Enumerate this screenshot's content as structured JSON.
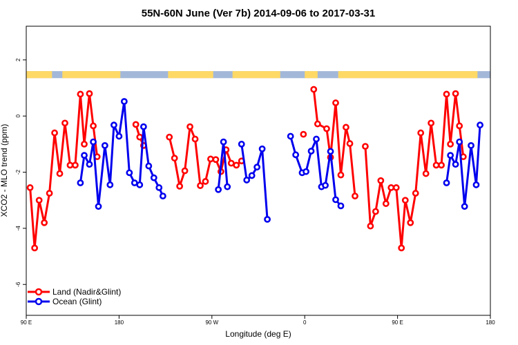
{
  "chart_data": {
    "type": "line",
    "title": "55N-60N June (Ver 7b)   2014-09-06 to 2017-03-31",
    "xlabel": "Longitude (deg E)",
    "ylabel": "XCO2 - MLO trend (ppm)",
    "xlim": [
      90,
      450
    ],
    "ylim": [
      -7.1,
      3.2
    ],
    "x_ticks": [
      90,
      162,
      234,
      306,
      378,
      450
    ],
    "x_tick_labels": [
      "90 E",
      "180",
      "90 W",
      "0",
      "90 E",
      "180"
    ],
    "y_ticks": [
      -6,
      -4,
      -2,
      0,
      2
    ],
    "y_tick_labels": [
      "-6",
      "-4",
      "-2",
      "0",
      "2"
    ],
    "legend_position": "bottom-left",
    "land_strip": {
      "y_range": [
        1.35,
        1.6
      ],
      "land_color": "#ffd966",
      "ocean_color": "#a3b8d9"
    },
    "series": [
      {
        "name": "Land (Nadir&Glint)",
        "color": "#ff0000",
        "segments": [
          [
            [
              93,
              -2.55
            ],
            [
              96.5,
              -4.7
            ],
            [
              100,
              -3
            ],
            [
              104,
              -3.8
            ],
            [
              108,
              -2.75
            ],
            [
              112,
              -0.6
            ],
            [
              116,
              -2.05
            ],
            [
              120,
              -0.25
            ],
            [
              124,
              -1.75
            ],
            [
              128,
              -1.75
            ],
            [
              132,
              0.78
            ],
            [
              135,
              -1
            ],
            [
              139,
              0.8
            ],
            [
              142,
              -0.35
            ],
            [
              145,
              -1.45
            ]
          ],
          [
            [
              175,
              -0.3
            ],
            [
              178,
              -0.75
            ],
            [
              181,
              -1.05
            ]
          ],
          [
            [
              201,
              -0.75
            ],
            [
              205,
              -1.5
            ],
            [
              209,
              -2.5
            ],
            [
              213,
              -1.95
            ],
            [
              217,
              -0.38
            ],
            [
              221,
              -0.82
            ],
            [
              225,
              -2.48
            ],
            [
              229,
              -2.33
            ],
            [
              233,
              -1.53
            ],
            [
              237,
              -1.55
            ],
            [
              241,
              -1.98
            ],
            [
              245,
              -1.2
            ],
            [
              249,
              -1.68
            ],
            [
              253,
              -1.75
            ],
            [
              257,
              -1.6
            ]
          ],
          [
            [
              305,
              -0.65
            ]
          ],
          [
            [
              313,
              0.95
            ],
            [
              316,
              -0.28
            ],
            [
              323,
              -0.45
            ],
            [
              326,
              -1.47
            ],
            [
              330,
              0.47
            ],
            [
              334,
              -2.1
            ],
            [
              338,
              -0.4
            ],
            [
              341,
              -0.98
            ],
            [
              345,
              -2.85
            ]
          ],
          [
            [
              353,
              -1.08
            ],
            [
              357,
              -3.92
            ],
            [
              361,
              -3.4
            ],
            [
              365,
              -2.3
            ],
            [
              369,
              -3.12
            ],
            [
              373,
              -2.55
            ],
            [
              377,
              -2.55
            ],
            [
              381,
              -4.7
            ],
            [
              384,
              -3
            ],
            [
              388,
              -3.8
            ],
            [
              392,
              -2.75
            ],
            [
              396,
              -0.6
            ],
            [
              400,
              -2.05
            ],
            [
              404,
              -0.25
            ],
            [
              408,
              -1.75
            ],
            [
              412,
              -1.75
            ],
            [
              416,
              0.78
            ],
            [
              419,
              -1
            ],
            [
              423,
              0.8
            ],
            [
              426,
              -0.35
            ],
            [
              429,
              -1.45
            ]
          ]
        ]
      },
      {
        "name": "Ocean (Glint)",
        "color": "#0000ee",
        "segments": [
          [
            [
              132,
              -2.38
            ],
            [
              135,
              -1.4
            ],
            [
              139,
              -1.72
            ],
            [
              142,
              -0.92
            ],
            [
              146,
              -3.22
            ],
            [
              151,
              -1.05
            ],
            [
              155,
              -2.45
            ],
            [
              158,
              -0.32
            ],
            [
              162,
              -0.72
            ],
            [
              166,
              0.52
            ],
            [
              170,
              -2.02
            ],
            [
              174,
              -2.38
            ],
            [
              178,
              -2.45
            ],
            [
              181,
              -0.38
            ],
            [
              185,
              -1.78
            ],
            [
              189,
              -2.2
            ],
            [
              193,
              -2.55
            ],
            [
              196,
              -2.85
            ]
          ],
          [
            [
              239,
              -2.62
            ],
            [
              243,
              -0.92
            ],
            [
              246,
              -2.52
            ]
          ],
          [
            [
              257,
              -1
            ],
            [
              261,
              -2.28
            ],
            [
              265,
              -2.12
            ],
            [
              269,
              -1.82
            ],
            [
              273,
              -1.17
            ],
            [
              277,
              -3.68
            ]
          ],
          [
            [
              295,
              -0.72
            ],
            [
              299,
              -1.38
            ],
            [
              304,
              -2.02
            ],
            [
              307,
              -1.98
            ],
            [
              311,
              -1.25
            ],
            [
              315,
              -0.82
            ],
            [
              319,
              -2.52
            ],
            [
              322,
              -2.47
            ],
            [
              326,
              -1.26
            ],
            [
              330,
              -2.98
            ],
            [
              334,
              -3.2
            ]
          ],
          [
            [
              416,
              -2.38
            ],
            [
              419,
              -1.4
            ],
            [
              423,
              -1.72
            ],
            [
              426,
              -0.92
            ],
            [
              430,
              -3.22
            ],
            [
              435,
              -1.05
            ],
            [
              439,
              -2.45
            ],
            [
              442,
              -0.32
            ]
          ]
        ]
      }
    ]
  }
}
